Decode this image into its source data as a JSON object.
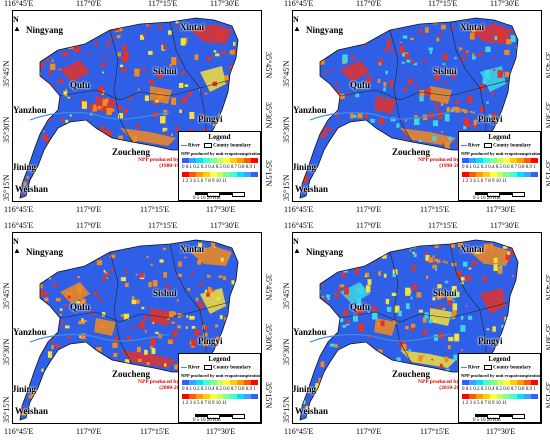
{
  "panels": [
    {
      "caption_line1": "NPP produced by unit evapotranspiration",
      "caption_line2": "(1980-1990)"
    },
    {
      "caption_line1": "NPP produced by unit evapotranspiration",
      "caption_line2": "(1990-2000)"
    },
    {
      "caption_line1": "NPP produced by unit evapotranspiration",
      "caption_line2": "(2000-2010)"
    },
    {
      "caption_line1": "NPP produced by unit evapotranspiration",
      "caption_line2": "(2010-2015)"
    }
  ],
  "ticks": {
    "top": [
      "116°45'E",
      "117°0'E",
      "117°15'E",
      "117°30'E"
    ],
    "bottom": [
      "116°45'E",
      "117°0'E",
      "117°15'E",
      "117°30'E"
    ],
    "left": [
      "35°45'N",
      "35°30'N",
      "35°15'N"
    ],
    "right": [
      "35°45'N",
      "35°30'N",
      "35°15'N"
    ]
  },
  "places": {
    "ningyang": "Ningyang",
    "xintai": "Xintai",
    "sishui": "Sishui",
    "qufu": "Qufu",
    "yanzhou": "Yanzhou",
    "pingyi": "Pingyi",
    "zoucheng": "Zoucheng",
    "jining": "Jining",
    "weishan": "Weishan"
  },
  "north_label": "N",
  "legend": {
    "title": "Legend",
    "river_label": "River",
    "county_label": "County boundary",
    "npp_label": "NPP produced by unit evapotranspiration",
    "row1_numbers": "0 0.1 0.2 0.3 0.4 0.5 0.6 0.7 0.8 0.9 1",
    "row2_numbers": "1 2 3 4 5 6 7 8 9 10 11",
    "scale_label": "0 5 10 20 Km",
    "ramp_colors": [
      "#ff0000",
      "#ff5a00",
      "#ff9a00",
      "#ffd000",
      "#ffff40",
      "#c8ff60",
      "#80ff90",
      "#40ffd0",
      "#00e0ff",
      "#40a0ff",
      "#3060ff"
    ]
  },
  "colors": {
    "dominant_blue": "#2f5fe6",
    "red": "#e2322a",
    "orange": "#f28a1d",
    "yellow": "#f4e13a",
    "cyan": "#3cd7e6",
    "river": "#3b8de0"
  }
}
